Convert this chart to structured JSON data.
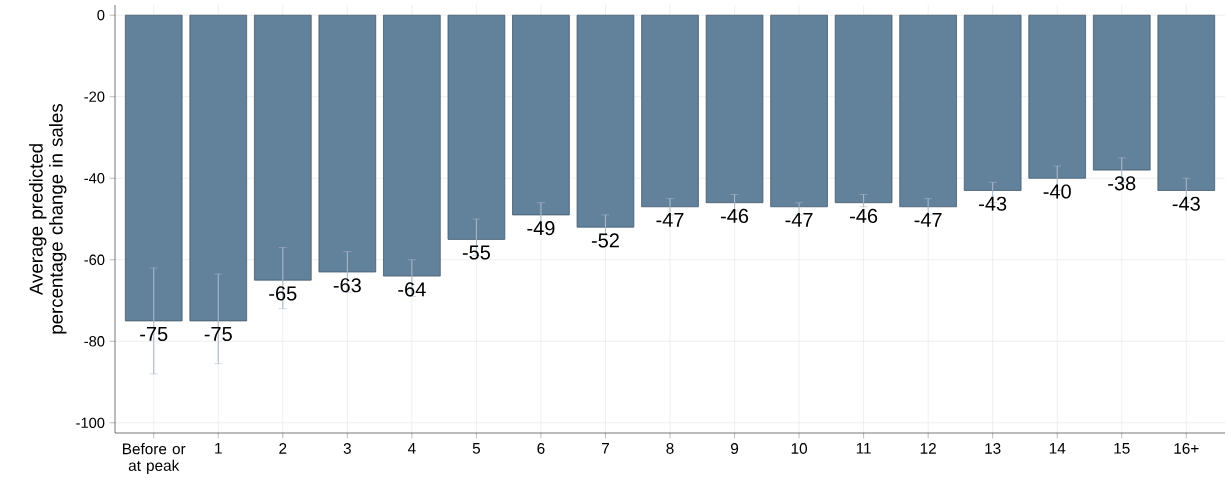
{
  "chart_data": {
    "type": "bar",
    "ylabel": "Average predicted percentage change in sales",
    "categories": [
      "Before or at peak",
      "1",
      "2",
      "3",
      "4",
      "5",
      "6",
      "7",
      "8",
      "9",
      "10",
      "11",
      "12",
      "13",
      "14",
      "15",
      "16+"
    ],
    "values": [
      -75,
      -75,
      -65,
      -63,
      -64,
      -55,
      -49,
      -52,
      -47,
      -46,
      -47,
      -46,
      -47,
      -43,
      -40,
      -38,
      -43
    ],
    "errors": [
      [
        -88,
        -62
      ],
      [
        -85.5,
        -63.5
      ],
      [
        -72,
        -57
      ],
      [
        -68,
        -58
      ],
      [
        -69,
        -60
      ],
      [
        -59,
        -50
      ],
      [
        -53,
        -46
      ],
      [
        -54,
        -49
      ],
      [
        -49,
        -45
      ],
      [
        -48,
        -44
      ],
      [
        -49,
        -46
      ],
      [
        -47,
        -44
      ],
      [
        -49,
        -45
      ],
      [
        -46,
        -41
      ],
      [
        -43,
        -37
      ],
      [
        -41,
        -35
      ],
      [
        -46,
        -40
      ]
    ],
    "color": "#62819a",
    "ylim": [
      -102.5,
      2.5
    ],
    "yticks": [
      -100,
      -80,
      -60,
      -40,
      -20,
      0
    ],
    "grid": true,
    "data_labels": true
  }
}
